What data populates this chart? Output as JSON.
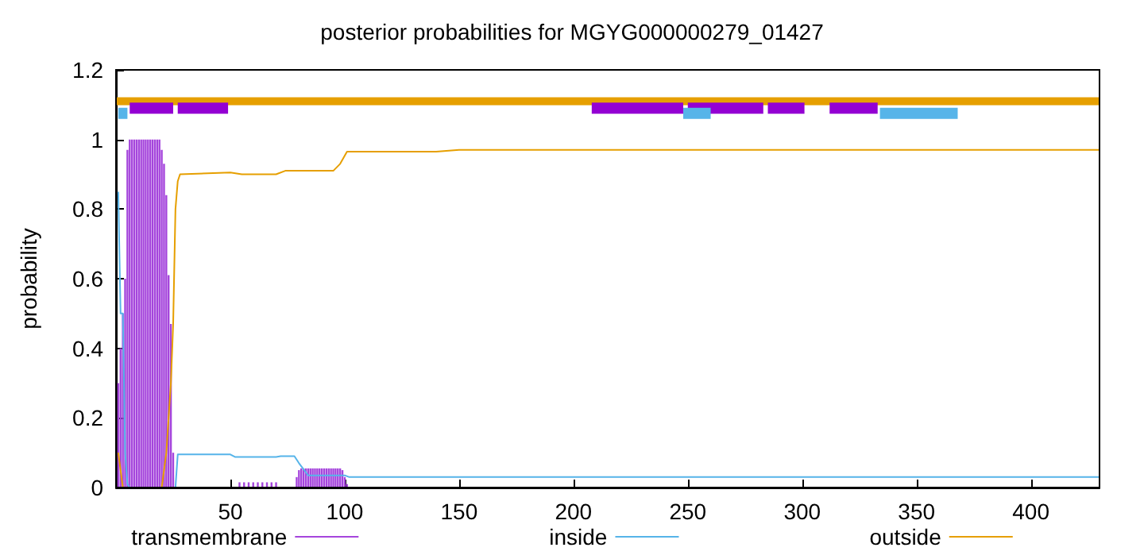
{
  "chart_data": {
    "type": "line",
    "title": "posterior probabilities for MGYG000000279_01427",
    "ylabel": "probability",
    "xlim": [
      0,
      430
    ],
    "xticks": [
      50,
      100,
      150,
      200,
      250,
      300,
      350,
      400
    ],
    "ylim": [
      0,
      1.2
    ],
    "yticks": [
      0,
      0.2,
      0.4,
      0.6,
      0.8,
      1,
      1.2
    ],
    "grid": false,
    "legend": "bottom",
    "marker": "none",
    "series": [
      {
        "name": "transmembrane",
        "type": "bar",
        "color": "#a545dc",
        "x": [
          1,
          2,
          3,
          4,
          5,
          6,
          7,
          8,
          9,
          10,
          11,
          12,
          13,
          14,
          15,
          16,
          17,
          18,
          19,
          20,
          21,
          22,
          23,
          24,
          25,
          54,
          56,
          58,
          60,
          62,
          64,
          66,
          68,
          70,
          79,
          80,
          81,
          82,
          83,
          84,
          85,
          86,
          87,
          88,
          89,
          90,
          91,
          92,
          93,
          94,
          95,
          96,
          97,
          98,
          99,
          100,
          101
        ],
        "values": [
          0.3,
          0.4,
          0.5,
          0.6,
          0.97,
          1,
          1,
          1,
          1,
          1,
          1,
          1,
          1,
          1,
          1,
          1,
          1,
          1,
          1,
          0.97,
          0.93,
          0.84,
          0.61,
          0.47,
          0.1,
          0.015,
          0.015,
          0.015,
          0.015,
          0.015,
          0.015,
          0.015,
          0.015,
          0.015,
          0.03,
          0.05,
          0.055,
          0.055,
          0.055,
          0.055,
          0.055,
          0.055,
          0.055,
          0.055,
          0.055,
          0.055,
          0.055,
          0.055,
          0.055,
          0.055,
          0.055,
          0.055,
          0.055,
          0.055,
          0.05,
          0.03,
          0.01
        ]
      },
      {
        "name": "inside",
        "color": "#56b4e9",
        "x": [
          1,
          2,
          3,
          4,
          5,
          6,
          26,
          27,
          50,
          52,
          70,
          72,
          78,
          80,
          84,
          100,
          102,
          430
        ],
        "values": [
          0.85,
          0.5,
          0.5,
          0.1,
          0.01,
          0,
          0,
          0.095,
          0.095,
          0.088,
          0.088,
          0.09,
          0.09,
          0.07,
          0.035,
          0.035,
          0.03,
          0.03
        ]
      },
      {
        "name": "outside",
        "color": "#e69f00",
        "x": [
          1,
          2,
          3,
          20,
          22,
          24,
          25,
          26,
          27,
          28,
          50,
          55,
          70,
          74,
          95,
          98,
          101,
          140,
          150,
          430
        ],
        "values": [
          0.1,
          0.05,
          0,
          0,
          0.1,
          0.3,
          0.47,
          0.8,
          0.88,
          0.9,
          0.905,
          0.9,
          0.9,
          0.91,
          0.91,
          0.93,
          0.965,
          0.965,
          0.97,
          0.97
        ]
      },
      {
        "color": "#e69f00",
        "x": [
          0,
          430
        ],
        "values": [
          1.11,
          1.11
        ]
      },
      {
        "color": "#9400d3",
        "x": [
          6,
          25,
          26,
          27,
          49,
          100,
          208,
          248,
          249,
          250,
          283,
          284,
          285,
          301,
          305,
          312,
          333
        ],
        "values": [
          1.09,
          1.09,
          null,
          1.09,
          1.09,
          null,
          1.09,
          1.09,
          null,
          1.09,
          1.09,
          null,
          1.09,
          1.09,
          null,
          1.09,
          1.09
        ]
      },
      {
        "color": "#56b4e9",
        "x": [
          1,
          5,
          100,
          248,
          260,
          300,
          334,
          368
        ],
        "values": [
          1.075,
          1.075,
          null,
          1.075,
          1.075,
          null,
          1.075,
          1.075
        ]
      }
    ]
  }
}
